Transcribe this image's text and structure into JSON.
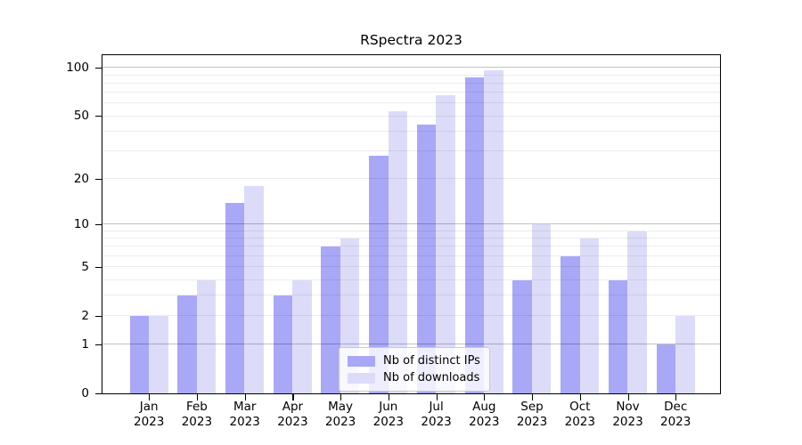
{
  "title": "RSpectra 2023",
  "colors": {
    "bar_distinct_ips": "#a8a8f7",
    "bar_downloads": "#dcdcf9",
    "major_gridline": "#c2c2c2",
    "minor_gridline": "#ededed",
    "axis": "#000000"
  },
  "legend": {
    "item1": "Nb of distinct IPs",
    "item2": "Nb of downloads"
  },
  "chart_data": {
    "type": "bar",
    "title": "RSpectra 2023",
    "categories": [
      "Jan",
      "Feb",
      "Mar",
      "Apr",
      "May",
      "Jun",
      "Jul",
      "Aug",
      "Sep",
      "Oct",
      "Nov",
      "Dec"
    ],
    "category_year": "2023",
    "series": [
      {
        "name": "Nb of distinct IPs",
        "color": "#a8a8f7",
        "values": [
          2,
          3,
          14,
          3,
          7,
          28,
          44,
          87,
          4,
          6,
          4,
          1
        ]
      },
      {
        "name": "Nb of downloads",
        "color": "#dcdcf9",
        "values": [
          2,
          4,
          18,
          4,
          8,
          54,
          68,
          97,
          10,
          8,
          9,
          2
        ]
      }
    ],
    "xlabel": "",
    "ylabel": "",
    "y_scale": "log1p",
    "y_tick_labels": [
      0,
      1,
      2,
      5,
      10,
      20,
      50,
      100
    ],
    "y_gridlines_major": [
      1,
      10,
      100
    ],
    "y_gridlines_minor": [
      2,
      3,
      4,
      5,
      6,
      7,
      8,
      9,
      20,
      30,
      40,
      50,
      60,
      70,
      80,
      90
    ],
    "ylim": [
      0,
      119.5
    ],
    "grid": true,
    "legend_position": "bottom-center"
  }
}
